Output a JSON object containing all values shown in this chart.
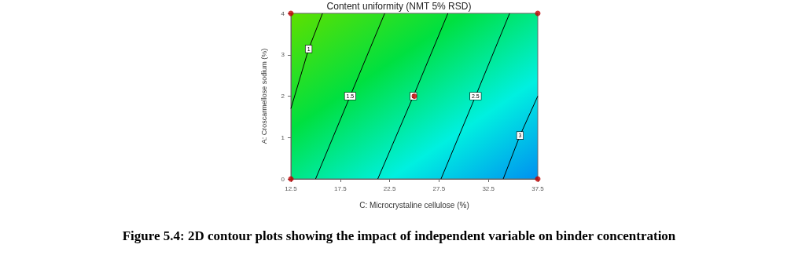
{
  "chart_data": {
    "type": "line",
    "title": "Content uniformity (NMT 5% RSD)",
    "xlabel": "C: Microcrystaline cellulose (%)",
    "ylabel": "A: Croscarmellose sodium (%)",
    "annotations": [
      "Figure 5.4: 2D contour plots showing the impact of independent variable on binder concentration"
    ],
    "xlim": [
      12.5,
      37.5
    ],
    "xticks": [
      12.5,
      17.5,
      22.5,
      27.5,
      32.5,
      37.5
    ],
    "ylim": [
      0,
      4
    ],
    "yticks": [
      0,
      1,
      2,
      3,
      4
    ],
    "grid": false,
    "legend": false,
    "marker": "none",
    "line_style": "solid",
    "series": [
      {
        "name": "1",
        "color": "#000000",
        "x": [
          12.5,
          14.3,
          15.7
        ],
        "values": [
          1.7,
          3.14,
          4
        ]
      },
      {
        "name": "1.5",
        "color": "#000000",
        "x": [
          15.0,
          18.5,
          22.0
        ],
        "values": [
          0,
          2,
          4
        ]
      },
      {
        "name": "2",
        "color": "#000000",
        "x": [
          21.3,
          24.9,
          28.4
        ],
        "values": [
          0,
          2,
          4
        ]
      },
      {
        "name": "2.5",
        "color": "#000000",
        "x": [
          27.7,
          31.2,
          34.65
        ],
        "values": [
          0,
          2,
          4
        ]
      },
      {
        "name": "3",
        "color": "#000000",
        "x": [
          34.0,
          35.7,
          37.5
        ],
        "values": [
          0,
          1.05,
          2.0
        ]
      },
      {
        "type": "scatter",
        "marker": "circle",
        "color": "#c00000",
        "x": [
          12.5,
          12.5,
          37.5,
          37.5,
          25
        ],
        "values": [
          0,
          4,
          0,
          4,
          2
        ]
      }
    ]
  }
}
